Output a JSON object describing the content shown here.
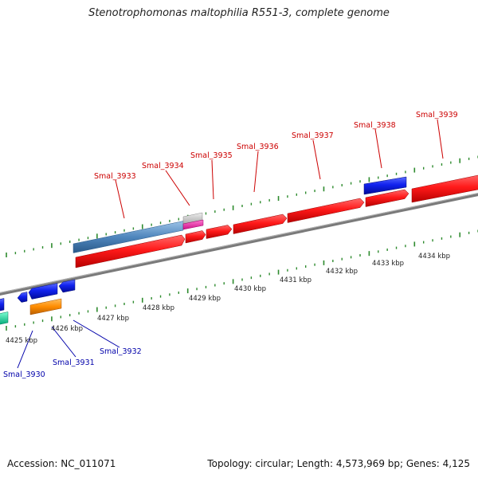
{
  "title": "Stenotrophomonas maltophilia R551-3, complete genome",
  "footer": {
    "accession": "Accession: NC_011071",
    "topology": "Topology: circular; Length: 4,573,969 bp; Genes: 4,125"
  },
  "colors": {
    "forward_label": "#cc0000",
    "reverse_label": "#0000aa",
    "forward_gene": "#ff1111",
    "reverse_gene": "#1122ee",
    "tick": "#2e8b2e",
    "backbone": "#777777"
  },
  "ticks": [
    {
      "label": "4425 kbp"
    },
    {
      "label": "4426 kbp"
    },
    {
      "label": "4427 kbp"
    },
    {
      "label": "4428 kbp"
    },
    {
      "label": "4429 kbp"
    },
    {
      "label": "4430 kbp"
    },
    {
      "label": "4431 kbp"
    },
    {
      "label": "4432 kbp"
    },
    {
      "label": "4433 kbp"
    },
    {
      "label": "4434 kbp"
    }
  ],
  "forward_labels": [
    {
      "text": "Smal_3933"
    },
    {
      "text": "Smal_3934"
    },
    {
      "text": "Smal_3935"
    },
    {
      "text": "Smal_3936"
    },
    {
      "text": "Smal_3937"
    },
    {
      "text": "Smal_3938"
    },
    {
      "text": "Smal_3939"
    }
  ],
  "reverse_labels": [
    {
      "text": "Smal_3930"
    },
    {
      "text": "Smal_3931"
    },
    {
      "text": "Smal_3932"
    }
  ]
}
